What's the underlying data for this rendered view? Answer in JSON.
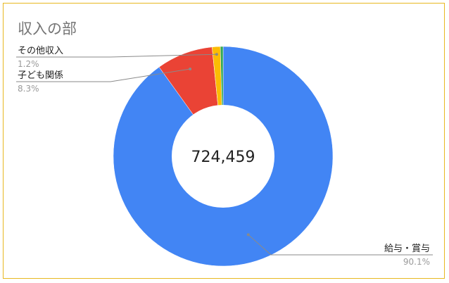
{
  "chart_data": {
    "type": "pie",
    "title": "収入の部",
    "total_label": "724,459",
    "slices": [
      {
        "name": "給与・賞与",
        "percent": 90.1,
        "percent_label": "90.1%",
        "color": "#4285f4"
      },
      {
        "name": "子ども関係",
        "percent": 8.3,
        "percent_label": "8.3%",
        "color": "#ea4335"
      },
      {
        "name": "その他収入",
        "percent": 1.2,
        "percent_label": "1.2%",
        "color": "#fbbc04"
      },
      {
        "name": "",
        "percent": 0.4,
        "percent_label": "",
        "color": "#34a853"
      }
    ],
    "donut": true,
    "legend": "none"
  }
}
